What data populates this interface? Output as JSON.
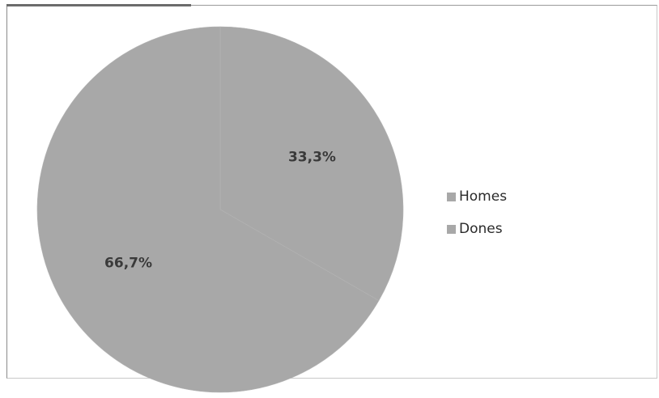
{
  "chart_data": {
    "type": "pie",
    "categories": [
      "Homes",
      "Dones"
    ],
    "values": [
      33.3,
      66.7
    ],
    "labels": [
      "33,3%",
      "66,7%"
    ],
    "colors": [
      "#a8a8a8",
      "#a8a8a8"
    ],
    "legend_position": "right",
    "title": ""
  },
  "legend": {
    "items": [
      {
        "label": "Homes",
        "color": "#a8a8a8"
      },
      {
        "label": "Dones",
        "color": "#a8a8a8"
      }
    ]
  }
}
